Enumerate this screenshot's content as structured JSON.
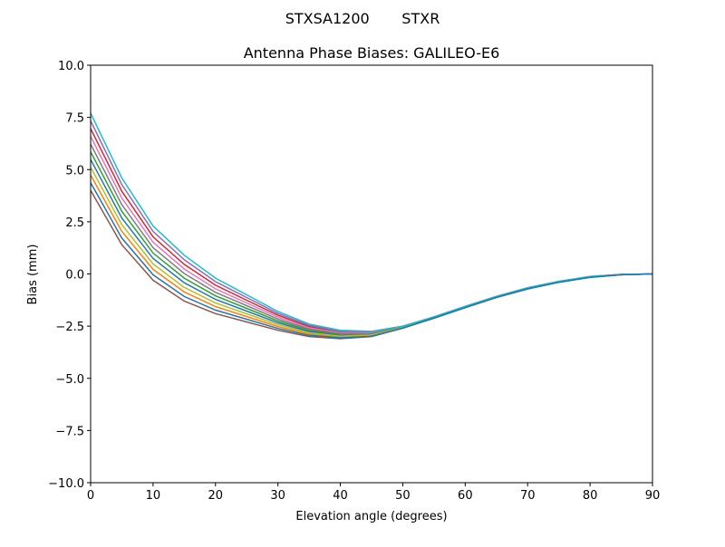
{
  "chart_data": {
    "type": "line",
    "suptitle": "STXSA1200       STXR",
    "title": "Antenna Phase Biases: GALILEO-E6",
    "xlabel": "Elevation angle (degrees)",
    "ylabel": "Bias (mm)",
    "xlim": [
      0,
      90
    ],
    "ylim": [
      -10,
      10
    ],
    "xticks": [
      0,
      10,
      20,
      30,
      40,
      50,
      60,
      70,
      80,
      90
    ],
    "yticks": [
      -10.0,
      -7.5,
      -5.0,
      -2.5,
      0.0,
      2.5,
      5.0,
      7.5,
      10.0
    ],
    "ytick_labels": [
      "−10.0",
      "−7.5",
      "−5.0",
      "−2.5",
      "0.0",
      "2.5",
      "5.0",
      "7.5",
      "10.0"
    ],
    "grid": false,
    "colors": [
      "#1f77b4",
      "#ff7f0e",
      "#2ca02c",
      "#d62728",
      "#9467bd",
      "#8c564b",
      "#e377c2",
      "#7f7f7f",
      "#bcbd22",
      "#17becf"
    ],
    "x": [
      0,
      5,
      10,
      15,
      20,
      25,
      30,
      35,
      40,
      45,
      50,
      55,
      60,
      65,
      70,
      75,
      80,
      85,
      90
    ],
    "series": [
      {
        "values": [
          5.48,
          2.68,
          0.74,
          -0.42,
          -1.22,
          -1.78,
          -2.34,
          -2.76,
          -2.94,
          -2.9,
          -2.56,
          -2.09,
          -1.59,
          -1.11,
          -0.7,
          -0.38,
          -0.14,
          -0.03,
          0
        ]
      },
      {
        "values": [
          4.74,
          2.04,
          0.22,
          -0.86,
          -1.56,
          -2.04,
          -2.52,
          -2.88,
          -3.02,
          -2.95,
          -2.58,
          -2.11,
          -1.61,
          -1.12,
          -0.71,
          -0.39,
          -0.15,
          -0.04,
          0
        ]
      },
      {
        "values": [
          5.85,
          3.0,
          1.0,
          -0.2,
          -1.05,
          -1.65,
          -2.25,
          -2.7,
          -2.9,
          -2.88,
          -2.55,
          -2.09,
          -1.59,
          -1.1,
          -0.69,
          -0.38,
          -0.14,
          -0.03,
          0
        ]
      },
      {
        "values": [
          6.96,
          3.96,
          1.78,
          0.46,
          -0.54,
          -1.26,
          -1.98,
          -2.52,
          -2.78,
          -2.8,
          -2.52,
          -2.06,
          -1.56,
          -1.08,
          -0.67,
          -0.36,
          -0.13,
          -0.02,
          0
        ]
      },
      {
        "values": [
          7.33,
          4.28,
          2.04,
          0.68,
          -0.37,
          -1.13,
          -1.89,
          -2.46,
          -2.74,
          -2.78,
          -2.51,
          -2.06,
          -1.56,
          -1.08,
          -0.67,
          -0.36,
          -0.12,
          -0.02,
          0
        ]
      },
      {
        "values": [
          4.0,
          1.4,
          -0.3,
          -1.3,
          -1.9,
          -2.3,
          -2.7,
          -3.0,
          -3.1,
          -3.0,
          -2.6,
          -2.12,
          -1.62,
          -1.13,
          -0.72,
          -0.4,
          -0.16,
          -0.04,
          0
        ]
      },
      {
        "values": [
          6.59,
          3.64,
          1.52,
          0.24,
          -0.71,
          -1.39,
          -2.07,
          -2.58,
          -2.82,
          -2.83,
          -2.53,
          -2.07,
          -1.57,
          -1.09,
          -0.68,
          -0.37,
          -0.13,
          -0.03,
          0
        ]
      },
      {
        "values": [
          6.22,
          3.32,
          1.26,
          0.02,
          -0.88,
          -1.52,
          -2.16,
          -2.64,
          -2.86,
          -2.85,
          -2.54,
          -2.08,
          -1.58,
          -1.09,
          -0.68,
          -0.37,
          -0.14,
          -0.03,
          0
        ]
      },
      {
        "values": [
          5.11,
          2.36,
          0.48,
          -0.64,
          -1.39,
          -1.91,
          -2.43,
          -2.82,
          -2.98,
          -2.93,
          -2.57,
          -2.1,
          -1.6,
          -1.11,
          -0.7,
          -0.39,
          -0.15,
          -0.03,
          0
        ]
      },
      {
        "values": [
          7.7,
          4.6,
          2.3,
          0.9,
          -0.2,
          -1.0,
          -1.8,
          -2.4,
          -2.7,
          -2.75,
          -2.5,
          -2.05,
          -1.55,
          -1.07,
          -0.66,
          -0.35,
          -0.12,
          -0.02,
          0
        ]
      },
      {
        "values": [
          4.37,
          1.72,
          -0.04,
          -1.08,
          -1.73,
          -2.17,
          -2.61,
          -2.94,
          -3.06,
          -2.98,
          -2.59,
          -2.11,
          -1.61,
          -1.12,
          -0.71,
          -0.4,
          -0.16,
          -0.04,
          0
        ]
      }
    ]
  }
}
